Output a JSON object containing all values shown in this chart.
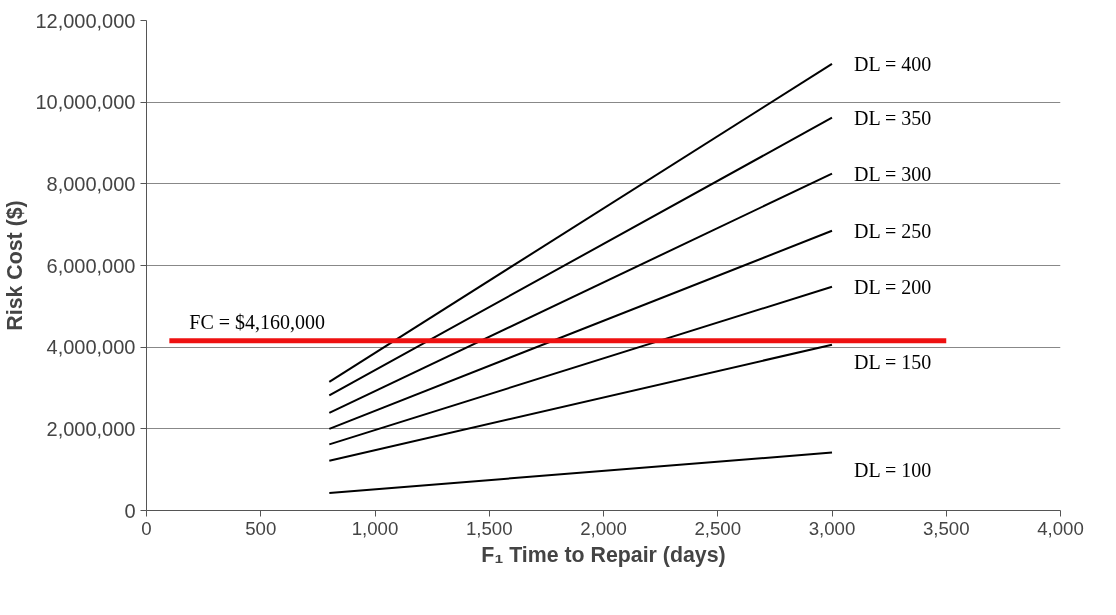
{
  "chart_data": {
    "type": "line",
    "xlabel": "F₁ Time to Repair (days)",
    "ylabel": "Risk Cost ($)",
    "xlim": [
      0,
      4000
    ],
    "ylim": [
      0,
      12000000
    ],
    "xticks": [
      0,
      500,
      {
        "value": 1000,
        "label": "1,000"
      },
      {
        "value": 1500,
        "label": "1,500"
      },
      {
        "value": 2000,
        "label": "2,000"
      },
      {
        "value": 2500,
        "label": "2,500"
      },
      {
        "value": 3000,
        "label": "3,000"
      },
      {
        "value": 3500,
        "label": "3,500"
      },
      {
        "value": 4000,
        "label": "4,000"
      }
    ],
    "yticks": [
      0,
      {
        "value": 2000000,
        "label": "2,000,000"
      },
      {
        "value": 4000000,
        "label": "4,000,000"
      },
      {
        "value": 6000000,
        "label": "6,000,000"
      },
      {
        "value": 8000000,
        "label": "8,000,000"
      },
      {
        "value": 10000000,
        "label": "10,000,000"
      },
      {
        "value": 12000000,
        "label": "12,000,000"
      }
    ],
    "grid": "y",
    "marker": "none",
    "line_style": "solid",
    "series": [
      {
        "name": "DL = 400",
        "color": "#000000",
        "x": [
          800,
          3000
        ],
        "values": [
          3150000,
          10940000
        ]
      },
      {
        "name": "DL = 350",
        "color": "#000000",
        "x": [
          800,
          3000
        ],
        "values": [
          2820000,
          9620000
        ]
      },
      {
        "name": "DL = 300",
        "color": "#000000",
        "x": [
          800,
          3000
        ],
        "values": [
          2390000,
          8250000
        ]
      },
      {
        "name": "DL = 250",
        "color": "#000000",
        "x": [
          800,
          3000
        ],
        "values": [
          2000000,
          6850000
        ]
      },
      {
        "name": "DL = 200",
        "color": "#000000",
        "x": [
          800,
          3000
        ],
        "values": [
          1620000,
          5480000
        ]
      },
      {
        "name": "DL = 150",
        "color": "#000000",
        "x": [
          800,
          3000
        ],
        "values": [
          1220000,
          4060000
        ]
      },
      {
        "name": "DL = 100",
        "color": "#000000",
        "x": [
          800,
          3000
        ],
        "values": [
          430000,
          1420000
        ]
      },
      {
        "color": "#ee1111",
        "x": [
          100,
          3500
        ],
        "values": [
          4160000,
          4160000
        ]
      }
    ],
    "annotations": [
      {
        "text": "FC = $4,160,000",
        "x": 100,
        "y": 4160000
      }
    ]
  }
}
